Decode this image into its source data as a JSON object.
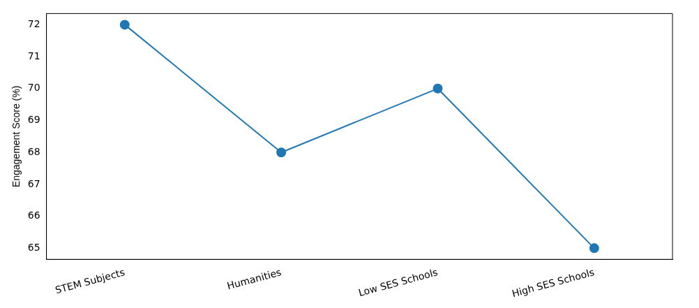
{
  "chart_data": {
    "type": "line",
    "ylabel": "Engagement Score (%)",
    "categories": [
      "STEM Subjects",
      "Humanities",
      "Low SES Schools",
      "High SES Schools"
    ],
    "series": [
      {
        "color": "#1f77b4",
        "values": [
          72,
          68,
          70,
          65
        ]
      }
    ],
    "ylim": [
      64.65,
      72.35
    ],
    "yticks": [
      65,
      66,
      67,
      68,
      69,
      70,
      71,
      72
    ],
    "grid": false,
    "legend": false,
    "marker": "circle",
    "line_style": "solid"
  }
}
